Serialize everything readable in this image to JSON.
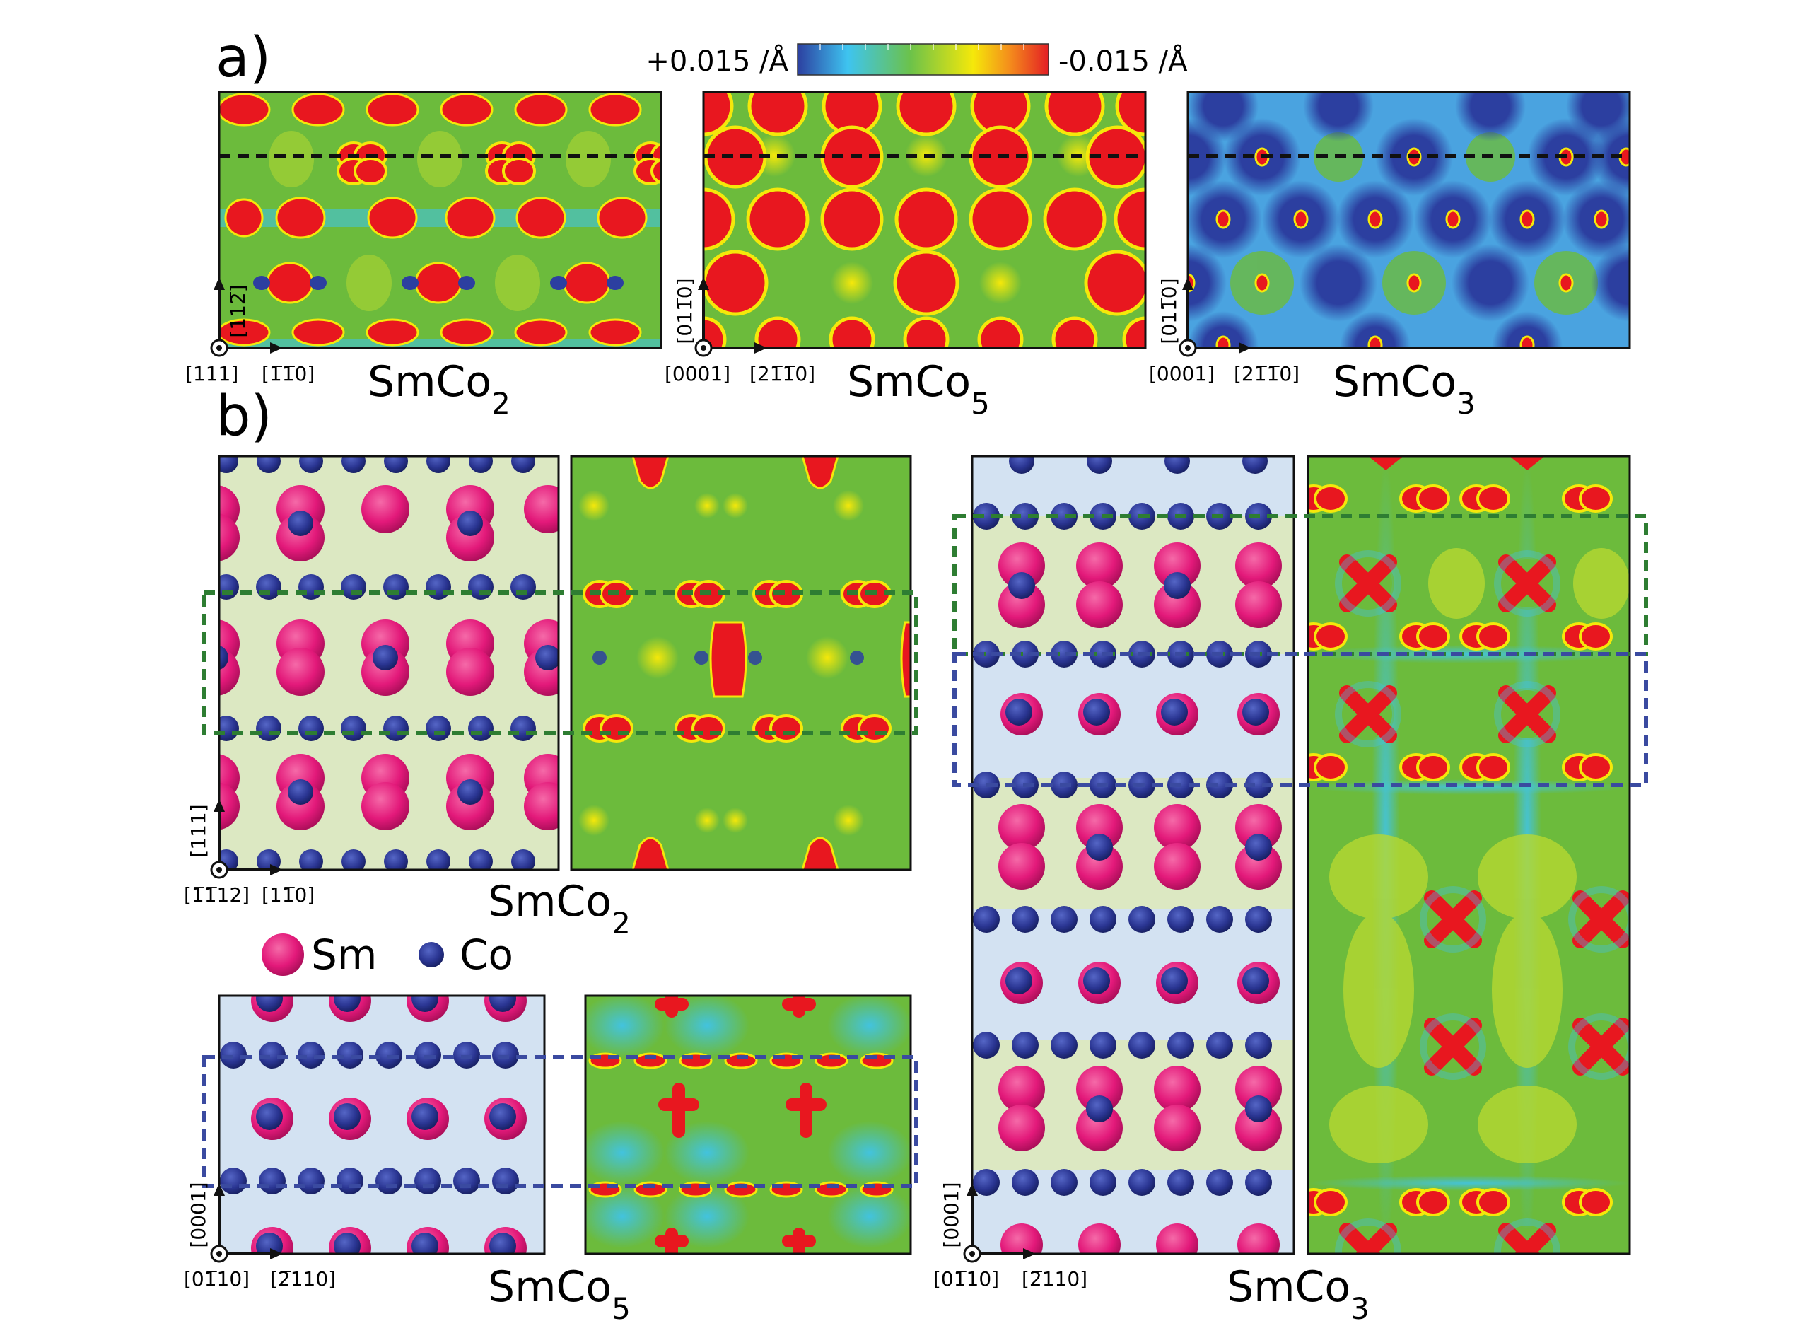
{
  "panel_labels": {
    "a": "a)",
    "b": "b)"
  },
  "colorbar": {
    "left_label": "+0.015 /Å",
    "right_label": "-0.015 /Å",
    "colors": [
      "#2c3fa0",
      "#3ec4f0",
      "#6cc24a",
      "#f5e80a",
      "#f48a1c",
      "#e31e24"
    ]
  },
  "part_a": [
    {
      "name": "SmCo",
      "sub": "2",
      "axis_out": "[111]",
      "axis_right": "[1̅1̅̅0]",
      "axis_up": "[112̅]"
    },
    {
      "name": "SmCo",
      "sub": "5",
      "axis_out": "[0001]",
      "axis_right": "[21̅1̅0]",
      "axis_up": "[011̅0]"
    },
    {
      "name": "SmCo",
      "sub": "3",
      "axis_out": "[0001]",
      "axis_right": "[21̅1̅0]",
      "axis_up": "[011̅0]"
    }
  ],
  "part_b": [
    {
      "name": "SmCo",
      "sub": "2",
      "axis_out": "[1̅1̅12]",
      "axis_right": "[11̅0]",
      "axis_up": "[111]"
    },
    {
      "name": "SmCo",
      "sub": "5",
      "axis_out": "[01̅10]",
      "axis_right": "[2̅110]",
      "axis_up": "[0001]"
    },
    {
      "name": "SmCo",
      "sub": "3",
      "axis_out": "[01̅10]",
      "axis_right": "[2̅110]",
      "axis_up": "[0001]"
    }
  ],
  "legend": [
    {
      "label": "Sm",
      "color": "#e3197a"
    },
    {
      "label": "Co",
      "color": "#2a3592"
    }
  ],
  "colors": {
    "density_bg": "#6cbb3c",
    "blue_bg": "#4aa3e0",
    "atom_bg_green": "#dce8c2",
    "atom_bg_blue": "#d3e2f2",
    "red": "#e8171f",
    "frame_green": "#2e7d32",
    "frame_blue": "#3a4aa0"
  }
}
